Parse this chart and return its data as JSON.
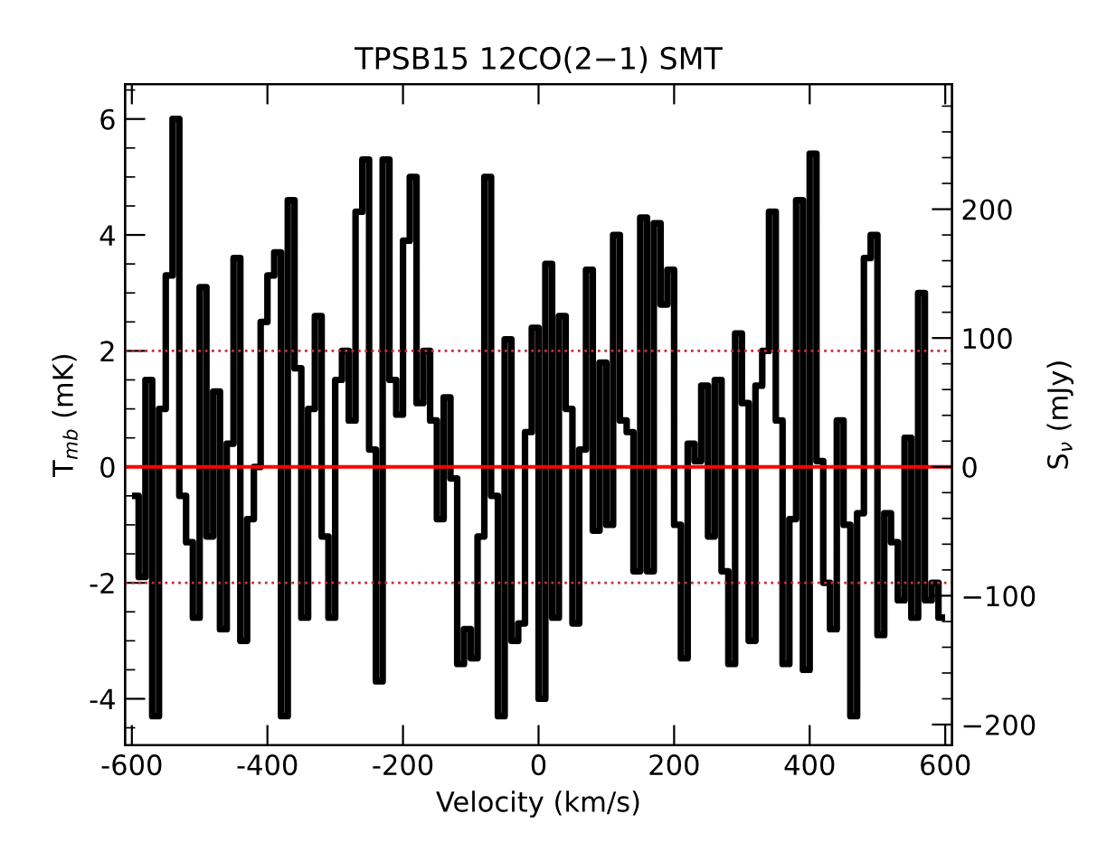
{
  "chart_data": {
    "type": "step",
    "title": "TPSB15 12CO(2−1) SMT",
    "xlabel": "Velocity (km/s)",
    "ylabel": "T$_{mb}$ (mK)",
    "y2label": "S$_{ν}$ (mJy)",
    "x": [
      -595,
      -585,
      -575,
      -565,
      -555,
      -545,
      -535,
      -525,
      -515,
      -505,
      -495,
      -485,
      -475,
      -465,
      -455,
      -445,
      -435,
      -425,
      -415,
      -405,
      -395,
      -385,
      -375,
      -365,
      -355,
      -345,
      -335,
      -325,
      -315,
      -305,
      -295,
      -285,
      -275,
      -265,
      -255,
      -245,
      -235,
      -225,
      -215,
      -205,
      -195,
      -185,
      -175,
      -165,
      -155,
      -145,
      -135,
      -125,
      -115,
      -105,
      -95,
      -85,
      -75,
      -65,
      -55,
      -45,
      -35,
      -25,
      -15,
      -5,
      5,
      15,
      25,
      35,
      45,
      55,
      65,
      75,
      85,
      95,
      105,
      115,
      125,
      135,
      145,
      155,
      165,
      175,
      185,
      195,
      205,
      215,
      225,
      235,
      245,
      255,
      265,
      275,
      285,
      295,
      305,
      315,
      325,
      335,
      345,
      355,
      365,
      375,
      385,
      395,
      405,
      415,
      425,
      435,
      445,
      455,
      465,
      475,
      485,
      495,
      505,
      515,
      525,
      535,
      545,
      555,
      565,
      575,
      585,
      595
    ],
    "series": [
      {
        "color": "#000000",
        "values": [
          -0.5,
          -1.9,
          1.5,
          -4.3,
          1.0,
          3.3,
          6.0,
          -0.5,
          -1.3,
          -2.6,
          3.1,
          -1.2,
          1.3,
          -2.8,
          0.4,
          3.6,
          -3.0,
          -0.9,
          0.0,
          2.5,
          3.3,
          3.7,
          -4.3,
          4.6,
          1.7,
          -2.6,
          1.0,
          2.6,
          -1.2,
          -2.6,
          1.5,
          2.0,
          0.8,
          4.4,
          5.3,
          0.3,
          -3.7,
          5.3,
          1.5,
          0.9,
          3.9,
          5.0,
          1.1,
          2.0,
          0.8,
          -0.9,
          1.2,
          -0.2,
          -3.4,
          -2.8,
          -3.3,
          -1.2,
          5.0,
          -0.5,
          -4.3,
          2.2,
          -3.0,
          -2.7,
          0.6,
          2.4,
          -4.0,
          3.5,
          -2.6,
          2.6,
          1.0,
          -2.7,
          0.3,
          3.4,
          -1.1,
          1.8,
          -1.0,
          4.0,
          0.8,
          0.6,
          -1.8,
          4.3,
          -1.8,
          4.2,
          2.8,
          3.4,
          -1.0,
          -3.3,
          0.4,
          0.1,
          1.4,
          -1.2,
          1.5,
          -1.8,
          -3.4,
          2.3,
          1.1,
          -3.0,
          1.4,
          2.0,
          4.4,
          0.8,
          -3.4,
          -0.9,
          4.6,
          -3.5,
          5.4,
          0.1,
          -2.0,
          -2.8,
          0.8,
          -1.0,
          -4.3,
          -0.8,
          3.6,
          4.0,
          -2.9,
          -0.8,
          -1.3,
          -2.3,
          0.5,
          -2.6,
          3.0,
          -2.3,
          -2.0,
          -2.6
        ]
      }
    ],
    "xlim": [
      -610,
      610
    ],
    "xticks": [
      -600,
      -400,
      -200,
      0,
      200,
      400,
      600
    ],
    "ylim": [
      -4.8,
      6.6
    ],
    "yticks": [
      -4,
      -2,
      0,
      2,
      4,
      6
    ],
    "y2lim": [
      -216,
      297
    ],
    "y2ticks": [
      -200,
      -100,
      0,
      100,
      200
    ],
    "ref_lines": [
      {
        "axis": "y",
        "value": 0,
        "color": "#ff0000",
        "line_style": "solid"
      },
      {
        "axis": "y",
        "value": 2,
        "color": "#c0303a",
        "line_style": "dotted"
      },
      {
        "axis": "y",
        "value": -2,
        "color": "#c0303a",
        "line_style": "dotted"
      }
    ],
    "grid": false,
    "legend": false
  }
}
